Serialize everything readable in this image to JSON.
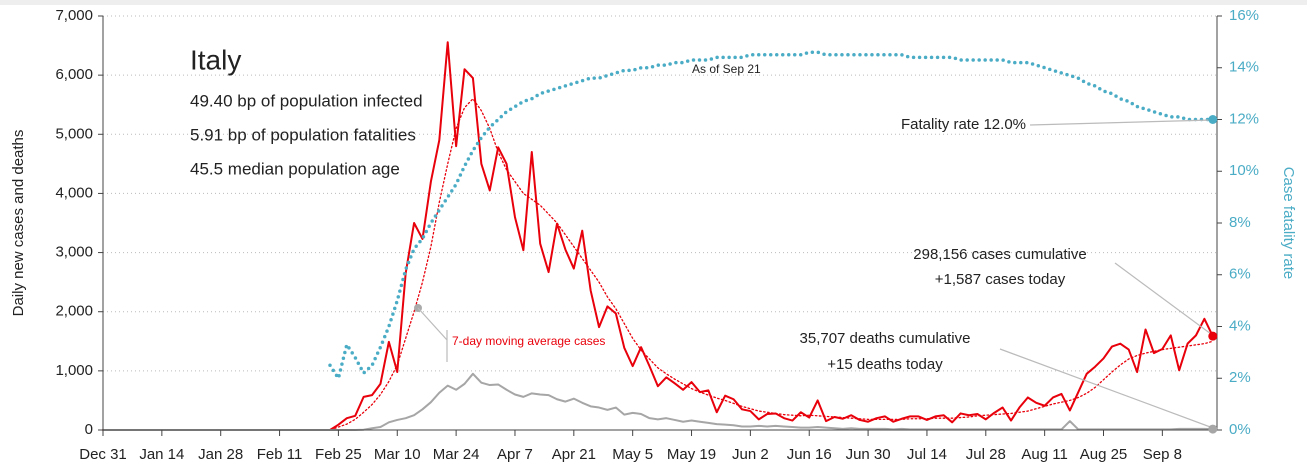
{
  "chart_data": {
    "type": "line",
    "title": "Italy",
    "notes": [
      "49.40 bp of population infected",
      "5.91 bp of population fatalities",
      "45.5 median population age",
      "As of Sep 21",
      "Fatality rate 12.0%",
      "298,156 cases cumulative",
      "+1,587 cases today",
      "35,707 deaths cumulative",
      "+15 deaths today"
    ],
    "ylabel": "Daily new cases and deaths",
    "y2label": "Case fatality rate",
    "grid": true,
    "ylim": [
      0,
      7000
    ],
    "yticks": [
      0,
      {
        "value": 1000,
        "label": "1,000"
      },
      {
        "value": 2000,
        "label": "2,000"
      },
      {
        "value": 3000,
        "label": "3,000"
      },
      {
        "value": 4000,
        "label": "4,000"
      },
      {
        "value": 5000,
        "label": "5,000"
      },
      {
        "value": 6000,
        "label": "6,000"
      },
      {
        "value": 7000,
        "label": "7,000"
      }
    ],
    "y2lim": [
      0,
      16
    ],
    "y2ticks": [
      {
        "value": 0,
        "label": "0%"
      },
      {
        "value": 2,
        "label": "2%"
      },
      {
        "value": 4,
        "label": "4%"
      },
      {
        "value": 6,
        "label": "6%"
      },
      {
        "value": 8,
        "label": "8%"
      },
      {
        "value": 10,
        "label": "10%"
      },
      {
        "value": 12,
        "label": "12%"
      },
      {
        "value": 14,
        "label": "14%"
      },
      {
        "value": 16,
        "label": "16%"
      }
    ],
    "categories": [
      "Dec 31",
      null,
      null,
      null,
      null,
      null,
      null,
      "Jan 14",
      null,
      null,
      null,
      null,
      null,
      null,
      "Jan 28",
      null,
      null,
      null,
      null,
      null,
      null,
      "Feb 11",
      null,
      null,
      null,
      null,
      null,
      null,
      "Feb 25",
      null,
      null,
      null,
      null,
      null,
      null,
      "Mar 10",
      null,
      null,
      null,
      null,
      null,
      null,
      "Mar 24",
      null,
      null,
      null,
      null,
      null,
      null,
      "Apr 7",
      null,
      null,
      null,
      null,
      null,
      null,
      "Apr 21",
      null,
      null,
      null,
      null,
      null,
      null,
      "May 5",
      null,
      null,
      null,
      null,
      null,
      null,
      "May 19",
      null,
      null,
      null,
      null,
      null,
      null,
      "Jun 2",
      null,
      null,
      null,
      null,
      null,
      null,
      "Jun 16",
      null,
      null,
      null,
      null,
      null,
      null,
      "Jun 30",
      null,
      null,
      null,
      null,
      null,
      null,
      "Jul 14",
      null,
      null,
      null,
      null,
      null,
      null,
      "Jul 28",
      null,
      null,
      null,
      null,
      null,
      null,
      "Aug 11",
      null,
      null,
      null,
      null,
      null,
      null,
      "Aug 25",
      null,
      null,
      null,
      null,
      null,
      null,
      "Sep 8",
      null,
      null,
      null,
      null,
      null,
      null
    ],
    "series": [
      {
        "color": "#e8000b",
        "values": [
          0,
          0,
          0,
          0,
          0,
          0,
          0,
          0,
          0,
          0,
          0,
          0,
          0,
          0,
          0,
          0,
          0,
          0,
          0,
          0,
          0,
          0,
          0,
          0,
          0,
          0,
          0,
          0,
          90,
          200,
          240,
          560,
          590,
          780,
          1490,
          980,
          2650,
          3500,
          3230,
          4200,
          4900,
          6557,
          4800,
          6100,
          5950,
          4500,
          4050,
          4780,
          4500,
          3600,
          3040,
          4700,
          3150,
          2670,
          3490,
          3050,
          2730,
          3370,
          2360,
          1740,
          2090,
          1970,
          1390,
          1080,
          1400,
          1080,
          740,
          890,
          790,
          680,
          810,
          640,
          670,
          300,
          580,
          520,
          350,
          320,
          180,
          270,
          280,
          200,
          160,
          300,
          210,
          500,
          150,
          220,
          190,
          250,
          170,
          140,
          200,
          230,
          140,
          190,
          230,
          230,
          170,
          230,
          250,
          130,
          280,
          250,
          270,
          180,
          290,
          380,
          160,
          380,
          550,
          460,
          410,
          550,
          610,
          330,
          640,
          950,
          1070,
          1210,
          1410,
          1460,
          1360,
          980,
          1700,
          1300,
          1370,
          1600,
          1010,
          1460,
          1600,
          1880,
          1587
        ]
      },
      {
        "name": "7-day moving average cases",
        "color": "#e8000b",
        "dash": "dotted",
        "values": [
          0,
          0,
          0,
          0,
          0,
          0,
          0,
          0,
          0,
          0,
          0,
          0,
          0,
          0,
          0,
          0,
          0,
          0,
          0,
          0,
          0,
          0,
          0,
          0,
          0,
          0,
          0,
          0,
          50,
          100,
          180,
          300,
          430,
          600,
          820,
          1100,
          1550,
          2000,
          2500,
          3100,
          3850,
          4500,
          5100,
          5450,
          5600,
          5400,
          5100,
          4700,
          4400,
          4200,
          4000,
          3900,
          3800,
          3650,
          3500,
          3300,
          3100,
          2900,
          2700,
          2500,
          2250,
          2050,
          1800,
          1550,
          1350,
          1200,
          1050,
          950,
          860,
          780,
          700,
          640,
          590,
          540,
          500,
          450,
          400,
          360,
          320,
          300,
          280,
          260,
          250,
          240,
          250,
          240,
          230,
          220,
          210,
          200,
          190,
          180,
          180,
          180,
          180,
          180,
          190,
          190,
          190,
          200,
          200,
          200,
          210,
          220,
          240,
          250,
          260,
          270,
          280,
          300,
          320,
          360,
          400,
          440,
          470,
          500,
          550,
          620,
          720,
          850,
          980,
          1100,
          1200,
          1260,
          1300,
          1330,
          1360,
          1380,
          1400,
          1420,
          1440,
          1460,
          1500
        ]
      },
      {
        "color": "#a6a6a6",
        "values": [
          0,
          0,
          0,
          0,
          0,
          0,
          0,
          0,
          0,
          0,
          0,
          0,
          0,
          0,
          0,
          0,
          0,
          0,
          0,
          0,
          0,
          0,
          0,
          0,
          0,
          0,
          0,
          0,
          0,
          0,
          0,
          5,
          30,
          50,
          130,
          170,
          200,
          250,
          350,
          470,
          630,
          750,
          680,
          780,
          950,
          800,
          760,
          770,
          680,
          600,
          560,
          620,
          600,
          590,
          520,
          480,
          530,
          460,
          400,
          380,
          340,
          380,
          260,
          290,
          270,
          200,
          180,
          200,
          170,
          140,
          160,
          140,
          120,
          100,
          90,
          80,
          60,
          60,
          70,
          60,
          70,
          60,
          50,
          40,
          40,
          50,
          40,
          30,
          20,
          30,
          20,
          20,
          20,
          20,
          10,
          20,
          10,
          10,
          10,
          10,
          10,
          10,
          10,
          10,
          10,
          10,
          10,
          10,
          10,
          10,
          10,
          10,
          10,
          10,
          10,
          150,
          10,
          10,
          10,
          10,
          10,
          10,
          10,
          10,
          10,
          10,
          10,
          10,
          20,
          20,
          20,
          20,
          15
        ]
      },
      {
        "color": "#4bacc6",
        "dash": "dotted",
        "axis": "y2",
        "values": [
          null,
          null,
          null,
          null,
          null,
          null,
          null,
          null,
          null,
          null,
          null,
          null,
          null,
          null,
          null,
          null,
          null,
          null,
          null,
          null,
          null,
          null,
          null,
          null,
          null,
          null,
          null,
          2.5,
          2.0,
          3.3,
          2.8,
          2.2,
          2.5,
          3.2,
          4.0,
          5.0,
          6.2,
          7.0,
          7.4,
          8.0,
          8.5,
          9.0,
          9.5,
          10.2,
          10.8,
          11.3,
          11.7,
          12.0,
          12.3,
          12.5,
          12.7,
          12.8,
          13.0,
          13.1,
          13.2,
          13.3,
          13.4,
          13.5,
          13.6,
          13.6,
          13.7,
          13.8,
          13.9,
          13.9,
          14.0,
          14.0,
          14.1,
          14.1,
          14.2,
          14.2,
          14.3,
          14.3,
          14.3,
          14.4,
          14.4,
          14.4,
          14.4,
          14.5,
          14.5,
          14.5,
          14.5,
          14.5,
          14.5,
          14.5,
          14.6,
          14.6,
          14.5,
          14.5,
          14.5,
          14.5,
          14.5,
          14.5,
          14.5,
          14.5,
          14.5,
          14.5,
          14.4,
          14.4,
          14.4,
          14.4,
          14.4,
          14.4,
          14.3,
          14.3,
          14.3,
          14.3,
          14.3,
          14.3,
          14.2,
          14.2,
          14.2,
          14.1,
          14.0,
          13.9,
          13.8,
          13.7,
          13.6,
          13.4,
          13.3,
          13.1,
          13.0,
          12.8,
          12.7,
          12.5,
          12.4,
          12.3,
          12.2,
          12.1,
          12.1,
          12.0,
          12.0,
          12.0,
          12.0
        ]
      }
    ]
  }
}
